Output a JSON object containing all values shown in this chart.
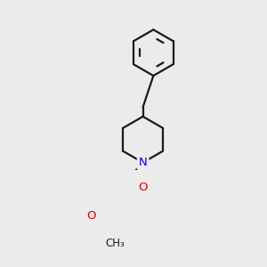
{
  "background_color": "#ebebeb",
  "bond_color": "#1a1a1a",
  "bond_width": 1.6,
  "atom_colors": {
    "N": "#0000ee",
    "O": "#dd0000",
    "C": "#1a1a1a"
  },
  "figsize": [
    3.0,
    3.0
  ],
  "dpi": 100
}
